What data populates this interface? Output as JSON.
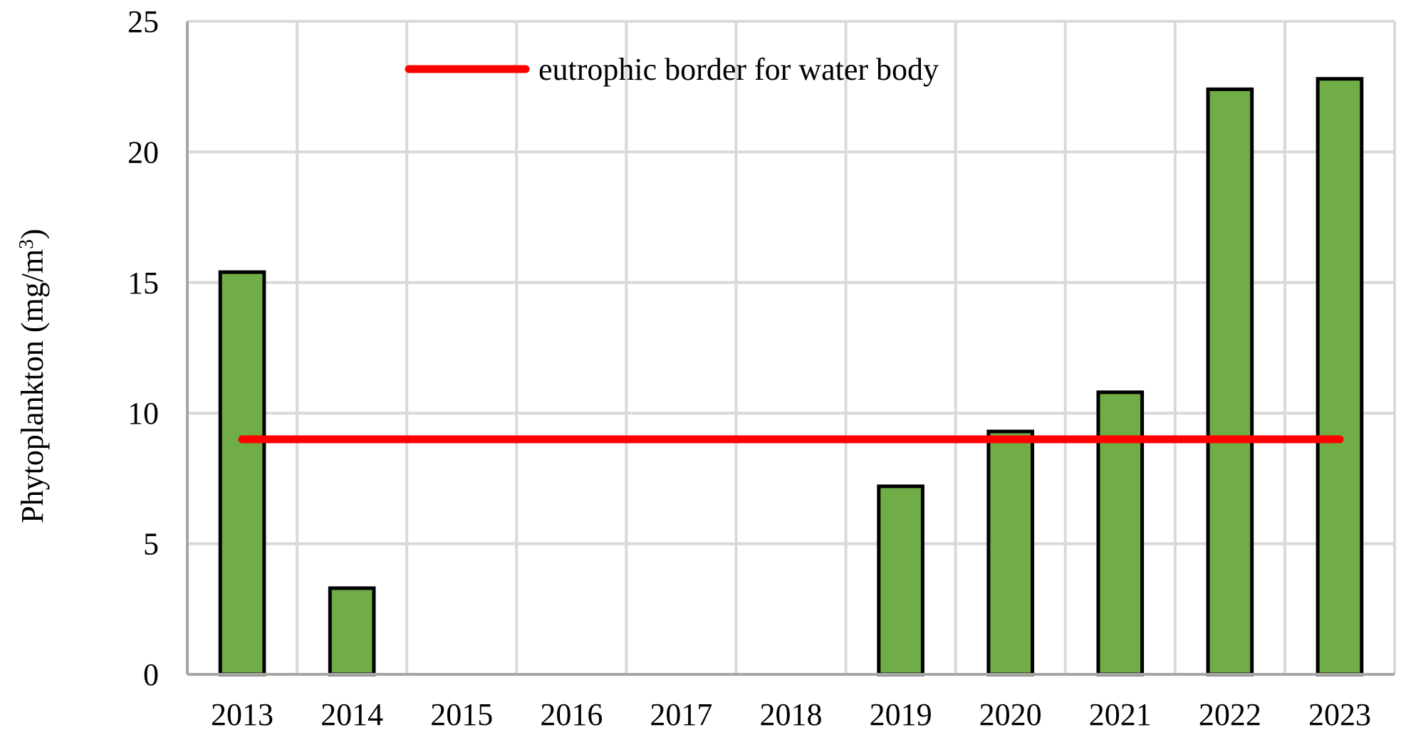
{
  "chart_data": {
    "type": "bar",
    "title": "",
    "xlabel": "",
    "ylabel": "Phytoplankton (mg/m",
    "ylabel_superscript": "3",
    "ylabel_suffix": ")",
    "categories": [
      "2013",
      "2014",
      "2015",
      "2016",
      "2017",
      "2018",
      "2019",
      "2020",
      "2021",
      "2022",
      "2023"
    ],
    "series": [
      {
        "values": [
          15.4,
          3.3,
          0,
          0,
          0,
          0,
          7.2,
          9.3,
          10.8,
          22.4,
          22.8
        ],
        "color": "#70AD47",
        "edge_color": "#000000"
      }
    ],
    "reference_line": {
      "label": "eutrophic border for water body",
      "value": 9,
      "color": "#FF0000"
    },
    "ylim": [
      0,
      25
    ],
    "yticks": [
      0,
      5,
      10,
      15,
      20,
      25
    ],
    "grid": true,
    "legend_position": "top-center"
  }
}
